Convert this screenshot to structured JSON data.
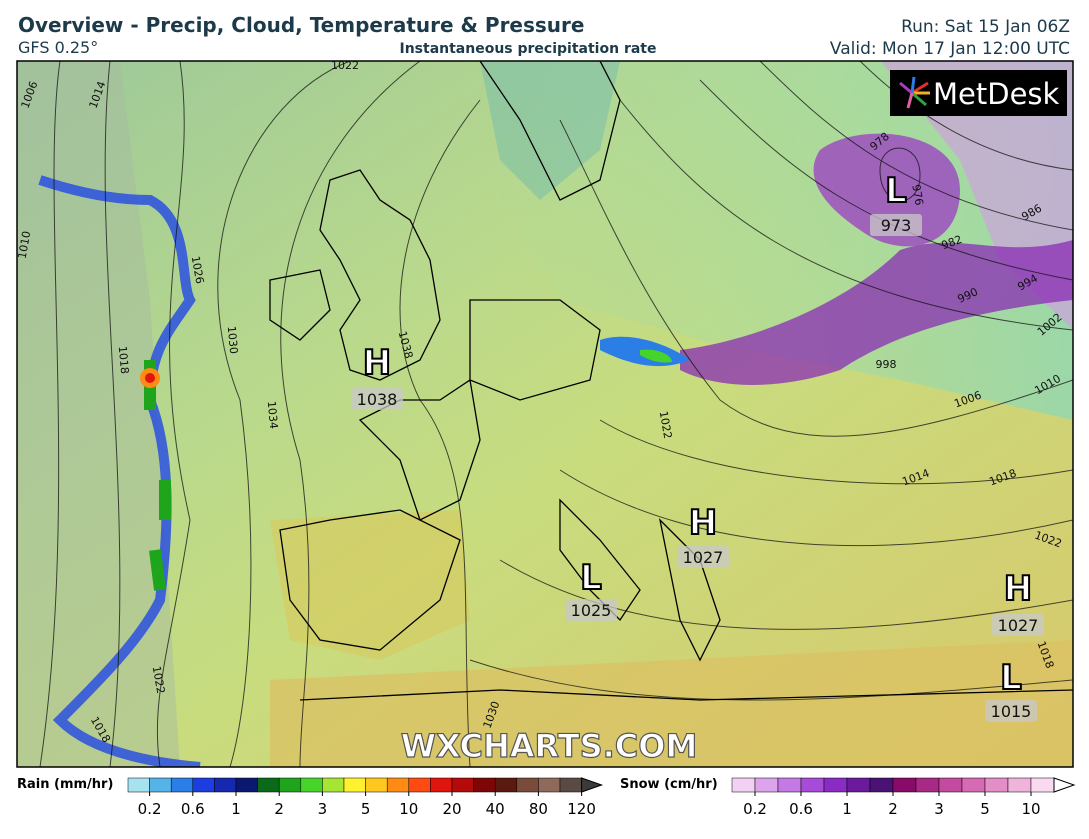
{
  "header": {
    "title": "Overview - Precip, Cloud, Temperature & Pressure",
    "model": "GFS 0.25°",
    "subtitle": "Instantaneous precipitation rate",
    "run": "Run: Sat 15 Jan 06Z",
    "valid": "Valid: Mon 17 Jan 12:00 UTC"
  },
  "logo": "MetDesk",
  "watermark": "WXCHARTS.COM",
  "pressure_centers": [
    {
      "letter": "H",
      "value": "1038"
    },
    {
      "letter": "L",
      "value": "973"
    },
    {
      "letter": "H",
      "value": "1027"
    },
    {
      "letter": "L",
      "value": "1025"
    },
    {
      "letter": "H",
      "value": "1027"
    },
    {
      "letter": "L",
      "value": "1015"
    }
  ],
  "isobar_labels": [
    "1006",
    "1014",
    "1022",
    "1010",
    "1026",
    "1030",
    "1018",
    "1038",
    "1034",
    "1022",
    "1018",
    "1030",
    "978",
    "976",
    "982",
    "986",
    "990",
    "994",
    "998",
    "1002",
    "1006",
    "1010",
    "1014",
    "1018",
    "1022",
    "1022",
    "1018"
  ],
  "legend": {
    "rain": {
      "title": "Rain (mm/hr)",
      "ticks": [
        "0.2",
        "0.6",
        "1",
        "2",
        "3",
        "5",
        "10",
        "20",
        "40",
        "80",
        "120"
      ],
      "colors": [
        "#a7e2f0",
        "#54b4e8",
        "#2a7ee6",
        "#1c3ee0",
        "#1428b0",
        "#0a1870",
        "#0a6a1a",
        "#1fa51c",
        "#46d42a",
        "#a6e632",
        "#fff22c",
        "#ffc81e",
        "#ff8a14",
        "#ff4a12",
        "#e0160e",
        "#b40a0a",
        "#7e0606",
        "#5a1a10",
        "#7a4a3a",
        "#8e6a5a",
        "#5a4a44"
      ]
    },
    "snow": {
      "title": "Snow (cm/hr)",
      "ticks": [
        "0.2",
        "0.6",
        "1",
        "2",
        "3",
        "5",
        "10"
      ],
      "colors": [
        "#f2d0f4",
        "#dca4ec",
        "#c47ae4",
        "#a64cd8",
        "#8a2cc4",
        "#6a1a9a",
        "#4a1274",
        "#8a0a6a",
        "#a82a86",
        "#c44aa0",
        "#d66ab4",
        "#e48ec8",
        "#f0b4dc",
        "#fadaf0"
      ]
    }
  }
}
